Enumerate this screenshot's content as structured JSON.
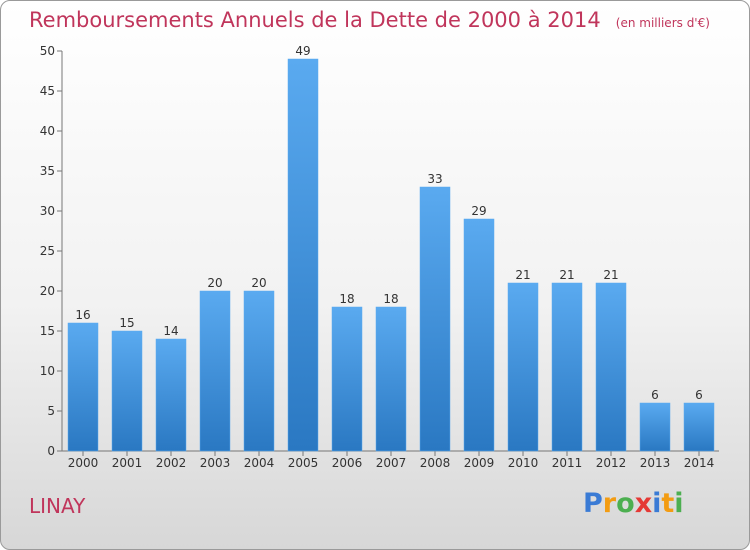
{
  "chart_data": {
    "type": "bar",
    "title": "Remboursements Annuels de la Dette de 2000 à 2014",
    "subtitle": "(en milliers d'€)",
    "categories": [
      "2000",
      "2001",
      "2002",
      "2003",
      "2004",
      "2005",
      "2006",
      "2007",
      "2008",
      "2009",
      "2010",
      "2011",
      "2012",
      "2013",
      "2014"
    ],
    "values": [
      16,
      15,
      14,
      20,
      20,
      49,
      18,
      18,
      33,
      29,
      21,
      21,
      21,
      6,
      6
    ],
    "ylim": [
      0,
      50
    ],
    "yticks": [
      0,
      5,
      10,
      15,
      20,
      25,
      30,
      35,
      40,
      45,
      50
    ],
    "xlabel": "",
    "ylabel": "",
    "grid": false,
    "bar_color": "#3d8ed6",
    "title_color": "#c0355b"
  },
  "commune": "LINAY",
  "logo": {
    "text": "Proxiti",
    "letters": [
      {
        "ch": "P",
        "color": "#3a7bd5"
      },
      {
        "ch": "r",
        "color": "#f39c12"
      },
      {
        "ch": "o",
        "color": "#4caf50"
      },
      {
        "ch": "x",
        "color": "#e53935"
      },
      {
        "ch": "i",
        "color": "#3a7bd5"
      },
      {
        "ch": "t",
        "color": "#f39c12"
      },
      {
        "ch": "i",
        "color": "#4caf50"
      }
    ]
  }
}
